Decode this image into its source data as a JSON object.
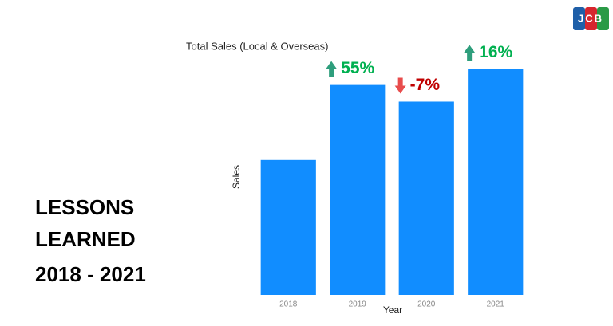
{
  "slide": {
    "heading_lines": [
      "LESSONS",
      "LEARNED"
    ],
    "period": "2018 - 2021",
    "logo": "JCB"
  },
  "chart_data": {
    "type": "bar",
    "title": "Total Sales (Local & Overseas)",
    "x_label": "Year",
    "y_label": "Sales",
    "categories": [
      "2018",
      "2019",
      "2020",
      "2021"
    ],
    "values": [
      3.0,
      4.67,
      4.3,
      5.03
    ],
    "color": "#118dff",
    "ylim": [
      0,
      5
    ],
    "change_labels": [
      null,
      "55%",
      "-7%",
      "16%"
    ],
    "change_directions": [
      null,
      "up",
      "down",
      "up"
    ],
    "change_colors": [
      null,
      "#00b050",
      "#c00000",
      "#00b050"
    ]
  }
}
